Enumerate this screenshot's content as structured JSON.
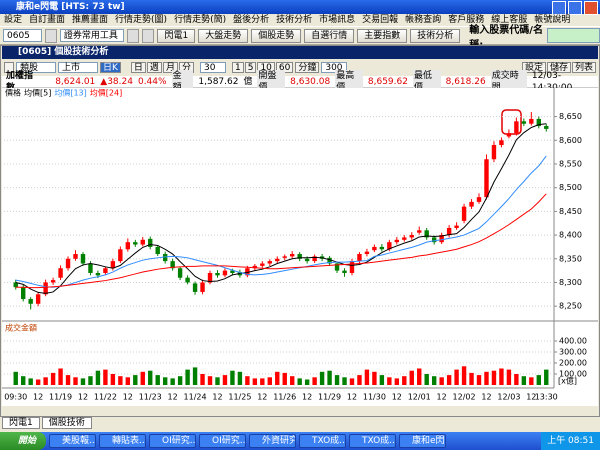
{
  "title_bar": "康和e閃電 [HTS: 73 tw]",
  "menu": [
    "設定",
    "自訂畫面",
    "推薦畫面",
    "行情走勢(圖)",
    "行情走勢(簡)",
    "盤後分析",
    "技術分析",
    "市場訊息",
    "交易回報",
    "帳務查詢",
    "客戶服務",
    "線上客服",
    "帳號說明"
  ],
  "toolbar": {
    "account": "0605",
    "tools": "證券常用工具",
    "buttons": [
      "閃電1",
      "大盤走勢",
      "個股走勢",
      "自選行情",
      "主要指數",
      "技術分析"
    ],
    "search_label": "輸入股票代碼/名稱:"
  },
  "window": {
    "title": "[0605] 個股技術分析",
    "controls": {
      "group": "類股",
      "market": "上市",
      "period": "日K",
      "tabs": [
        "日",
        "週",
        "月",
        "分"
      ],
      "minutes": "30",
      "steps": [
        "1",
        "5",
        "10",
        "60"
      ],
      "unit": "分鐘",
      "count": "300",
      "right": [
        "設定",
        "儲存",
        "列表"
      ]
    },
    "quote": {
      "name": "加權指數",
      "price": "8,624.01",
      "change": "▲38.24",
      "change_pct": "0.44%",
      "amount_label": "金 額",
      "amount": "1,587.62",
      "amount_unit": "億",
      "open_label": "開盤價",
      "open": "8,630.08",
      "high_label": "最高價",
      "high": "8,659.62",
      "low_label": "最低價",
      "low": "8,618.26",
      "time_label": "成交時間",
      "time": "12/03-14:30:00"
    }
  },
  "chart_data": [
    {
      "type": "candlestick",
      "name": "價格",
      "up_color": "#ff0000",
      "down_color": "#008000",
      "open": [
        8300,
        8290,
        8265,
        8255,
        8275,
        8300,
        8310,
        8330,
        8350,
        8360,
        8340,
        8320,
        8320,
        8330,
        8345,
        8370,
        8385,
        8380,
        8392,
        8375,
        8360,
        8345,
        8330,
        8310,
        8298,
        8280,
        8300,
        8320,
        8315,
        8325,
        8322,
        8315,
        8330,
        8335,
        8340,
        8345,
        8352,
        8355,
        8360,
        8350,
        8345,
        8355,
        8352,
        8340,
        8325,
        8320,
        8345,
        8360,
        8368,
        8375,
        8370,
        8385,
        8390,
        8395,
        8405,
        8410,
        8395,
        8385,
        8400,
        8415,
        8430,
        8460,
        8470,
        8480,
        8560,
        8590,
        8608,
        8615,
        8640,
        8635,
        8645,
        8630
      ],
      "high": [
        8306,
        8295,
        8269,
        8280,
        8306,
        8310,
        8336,
        8355,
        8368,
        8364,
        8345,
        8325,
        8334,
        8350,
        8376,
        8393,
        8390,
        8396,
        8397,
        8379,
        8365,
        8350,
        8334,
        8315,
        8302,
        8306,
        8325,
        8326,
        8330,
        8329,
        8327,
        8335,
        8339,
        8345,
        8349,
        8355,
        8359,
        8366,
        8364,
        8355,
        8359,
        8360,
        8356,
        8344,
        8330,
        8350,
        8364,
        8371,
        8380,
        8381,
        8390,
        8396,
        8400,
        8406,
        8418,
        8415,
        8399,
        8405,
        8421,
        8427,
        8466,
        8476,
        8488,
        8570,
        8598,
        8606,
        8623,
        8648,
        8646,
        8659.62,
        8650,
        8635
      ],
      "low": [
        8285,
        8260,
        8243,
        8250,
        8271,
        8295,
        8305,
        8325,
        8346,
        8335,
        8315,
        8309,
        8316,
        8325,
        8341,
        8365,
        8375,
        8376,
        8370,
        8356,
        8340,
        8325,
        8305,
        8296,
        8274,
        8275,
        8296,
        8310,
        8311,
        8315,
        8310,
        8311,
        8325,
        8331,
        8335,
        8341,
        8347,
        8351,
        8345,
        8340,
        8341,
        8345,
        8335,
        8320,
        8312,
        8315,
        8341,
        8355,
        8364,
        8365,
        8366,
        8380,
        8386,
        8390,
        8401,
        8390,
        8380,
        8381,
        8395,
        8411,
        8425,
        8455,
        8466,
        8475,
        8554,
        8585,
        8604,
        8610,
        8630,
        8631,
        8625,
        8618.26
      ],
      "close": [
        8290,
        8265,
        8255,
        8275,
        8300,
        8305,
        8330,
        8350,
        8360,
        8340,
        8320,
        8315,
        8330,
        8345,
        8370,
        8385,
        8380,
        8390,
        8375,
        8360,
        8345,
        8330,
        8310,
        8300,
        8280,
        8300,
        8320,
        8315,
        8325,
        8320,
        8315,
        8330,
        8335,
        8340,
        8345,
        8350,
        8355,
        8360,
        8350,
        8345,
        8355,
        8350,
        8340,
        8325,
        8320,
        8345,
        8360,
        8365,
        8375,
        8370,
        8385,
        8390,
        8395,
        8400,
        8410,
        8395,
        8385,
        8400,
        8415,
        8420,
        8460,
        8470,
        8480,
        8560,
        8590,
        8600,
        8615,
        8640,
        8635,
        8645,
        8630,
        8624
      ],
      "series": [
        {
          "name": "均價[5]",
          "color": "#000000",
          "values": [
            8300,
            8296,
            8286,
            8279,
            8277,
            8280,
            8293,
            8312,
            8329,
            8337,
            8340,
            8337,
            8333,
            8330,
            8336,
            8349,
            8362,
            8374,
            8380,
            8378,
            8370,
            8360,
            8344,
            8329,
            8313,
            8304,
            8302,
            8303,
            8308,
            8316,
            8319,
            8321,
            8325,
            8328,
            8333,
            8340,
            8345,
            8350,
            8352,
            8352,
            8353,
            8352,
            8348,
            8343,
            8338,
            8336,
            8338,
            8343,
            8353,
            8363,
            8371,
            8377,
            8383,
            8388,
            8396,
            8398,
            8397,
            8398,
            8401,
            8403,
            8416,
            8433,
            8449,
            8478,
            8512,
            8540,
            8569,
            8601,
            8616,
            8627,
            8633,
            8635
          ]
        },
        {
          "name": "均價[13]",
          "color": "#2f8cff",
          "values": [
            8305,
            8302,
            8298,
            8294,
            8291,
            8290,
            8292,
            8295,
            8300,
            8305,
            8309,
            8312,
            8316,
            8322,
            8330,
            8337,
            8342,
            8347,
            8350,
            8352,
            8354,
            8355,
            8354,
            8352,
            8348,
            8344,
            8340,
            8336,
            8331,
            8326,
            8321,
            8317,
            8316,
            8317,
            8319,
            8322,
            8325,
            8328,
            8331,
            8334,
            8337,
            8340,
            8342,
            8343,
            8343,
            8344,
            8345,
            8346,
            8355,
            8358,
            8362,
            8366,
            8370,
            8374,
            8379,
            8385,
            8388,
            8390,
            8393,
            8396,
            8400,
            8407,
            8414,
            8428,
            8444,
            8460,
            8477,
            8496,
            8513,
            8531,
            8546,
            8567
          ]
        },
        {
          "name": "均價[24]",
          "color": "#ff0000",
          "values": [
            8290,
            8290,
            8289,
            8289,
            8290,
            8291,
            8292,
            8294,
            8296,
            8298,
            8300,
            8302,
            8304,
            8307,
            8310,
            8314,
            8318,
            8322,
            8325,
            8328,
            8330,
            8332,
            8333,
            8334,
            8334,
            8335,
            8335,
            8335,
            8335,
            8334,
            8333,
            8332,
            8331,
            8330,
            8329,
            8329,
            8330,
            8331,
            8332,
            8333,
            8334,
            8335,
            8336,
            8337,
            8338,
            8339,
            8340,
            8341,
            8343,
            8345,
            8347,
            8349,
            8351,
            8353,
            8356,
            8358,
            8361,
            8364,
            8367,
            8370,
            8375,
            8380,
            8386,
            8394,
            8403,
            8412,
            8422,
            8433,
            8444,
            8455,
            8470,
            8487
          ]
        }
      ],
      "ylim": [
        8225,
        8685
      ],
      "yticks": [
        {
          "value": 8250,
          "label": "8,250"
        },
        {
          "value": 8300,
          "label": "8,300"
        },
        {
          "value": 8350,
          "label": "8,350"
        },
        {
          "value": 8400,
          "label": "8,400"
        },
        {
          "value": 8450,
          "label": "8,450"
        },
        {
          "value": 8500,
          "label": "8,500"
        },
        {
          "value": 8550,
          "label": "8,550"
        },
        {
          "value": 8600,
          "label": "8,600"
        },
        {
          "value": 8650,
          "label": "8,650"
        }
      ],
      "grid": true
    },
    {
      "type": "bar",
      "title": "成交金額",
      "unit_label": "[x億]",
      "categories": [
        "09:30",
        null,
        null,
        "12",
        null,
        null,
        "11/19",
        null,
        null,
        "12",
        null,
        null,
        "11/22",
        null,
        null,
        "12",
        null,
        null,
        "11/23",
        null,
        null,
        "12",
        null,
        null,
        "11/24",
        null,
        null,
        "12",
        null,
        null,
        "11/25",
        null,
        null,
        "12",
        null,
        null,
        "11/26",
        null,
        null,
        "12",
        null,
        null,
        "11/29",
        null,
        null,
        "12",
        null,
        null,
        "11/30",
        null,
        null,
        "12",
        null,
        null,
        "12/01",
        null,
        null,
        "12",
        null,
        null,
        "12/02",
        null,
        null,
        "12",
        null,
        null,
        "12/03",
        null,
        null,
        "12",
        null,
        "13:30"
      ],
      "values": [
        120,
        80,
        60,
        50,
        70,
        110,
        150,
        90,
        70,
        60,
        80,
        130,
        140,
        100,
        80,
        70,
        90,
        120,
        130,
        90,
        70,
        60,
        80,
        140,
        160,
        100,
        80,
        70,
        90,
        130,
        120,
        80,
        60,
        60,
        70,
        120,
        110,
        80,
        60,
        50,
        70,
        120,
        130,
        90,
        70,
        60,
        90,
        140,
        120,
        90,
        70,
        60,
        80,
        130,
        150,
        100,
        80,
        70,
        90,
        140,
        170,
        110,
        90,
        120,
        130,
        150,
        140,
        100,
        80,
        70,
        90,
        140
      ],
      "ylim": [
        0,
        450
      ],
      "yticks": [
        {
          "value": 100,
          "label": "100.00"
        },
        {
          "value": 200,
          "label": "200.00"
        },
        {
          "value": 300,
          "label": "300.00"
        },
        {
          "value": 400,
          "label": "400.00"
        }
      ],
      "grid": true
    }
  ],
  "tabs": [
    "閃電1",
    "個股技術"
  ],
  "taskbar": {
    "start": "開始",
    "items": [
      "美股報...",
      "轉貼表...",
      "OI研究...",
      "OI研究...",
      "外資研究",
      "TXO成...",
      "TXO成...",
      "康和e閃..."
    ],
    "clock": "上午 08:51"
  }
}
